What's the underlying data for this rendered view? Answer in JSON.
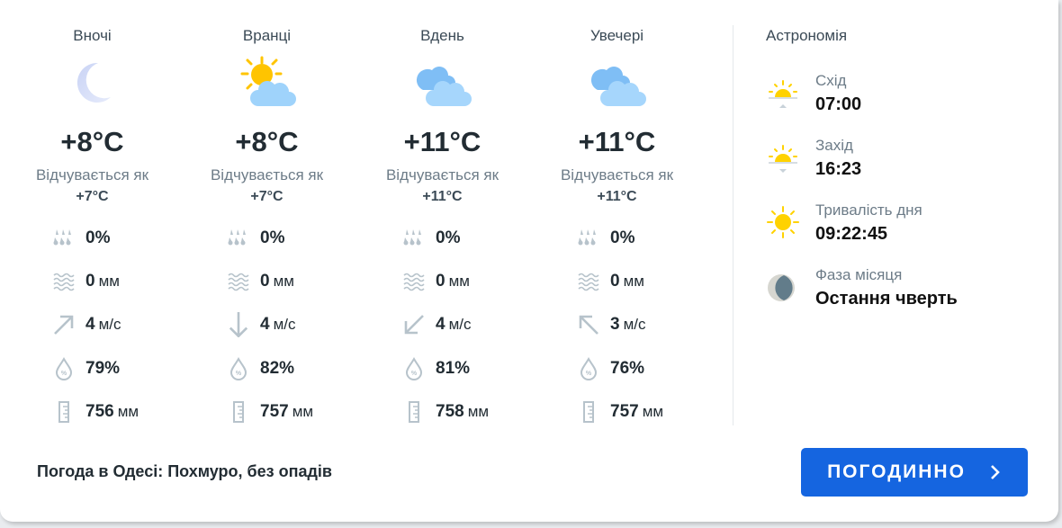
{
  "periods": [
    {
      "name": "Вночі",
      "icon": "moon",
      "temp": "+8°C",
      "feels_label": "Відчувається як",
      "feels": "+7°C",
      "precip_prob": "0%",
      "precip": "0",
      "precip_unit": "мм",
      "wind_dir": "north-east",
      "wind": "4",
      "wind_unit": "м/с",
      "humidity": "79%",
      "pressure": "756",
      "pressure_unit": "мм"
    },
    {
      "name": "Вранці",
      "icon": "sun-cloud",
      "temp": "+8°C",
      "feels_label": "Відчувається як",
      "feels": "+7°C",
      "precip_prob": "0%",
      "precip": "0",
      "precip_unit": "мм",
      "wind_dir": "south",
      "wind": "4",
      "wind_unit": "м/с",
      "humidity": "82%",
      "pressure": "757",
      "pressure_unit": "мм"
    },
    {
      "name": "Вдень",
      "icon": "cloud",
      "temp": "+11°C",
      "feels_label": "Відчувається як",
      "feels": "+11°C",
      "precip_prob": "0%",
      "precip": "0",
      "precip_unit": "мм",
      "wind_dir": "south-west",
      "wind": "4",
      "wind_unit": "м/с",
      "humidity": "81%",
      "pressure": "758",
      "pressure_unit": "мм"
    },
    {
      "name": "Увечері",
      "icon": "cloud",
      "temp": "+11°C",
      "feels_label": "Відчувається як",
      "feels": "+11°C",
      "precip_prob": "0%",
      "precip": "0",
      "precip_unit": "мм",
      "wind_dir": "north-west",
      "wind": "3",
      "wind_unit": "м/с",
      "humidity": "76%",
      "pressure": "757",
      "pressure_unit": "мм"
    }
  ],
  "astronomy": {
    "title": "Астрономія",
    "items": [
      {
        "label": "Схід",
        "value": "07:00",
        "icon": "sunrise"
      },
      {
        "label": "Захід",
        "value": "16:23",
        "icon": "sunset"
      },
      {
        "label": "Тривалість дня",
        "value": "09:22:45",
        "icon": "sun"
      },
      {
        "label": "Фаза місяця",
        "value": "Остання чверть",
        "icon": "moon-phase"
      }
    ]
  },
  "summary": "Погода в Одесі: Похмуро, без опадів",
  "hourly_button": "погодинно",
  "colors": {
    "accent": "#1565e0",
    "sun": "#ffd200",
    "icon_gray": "#b7c3cb"
  }
}
